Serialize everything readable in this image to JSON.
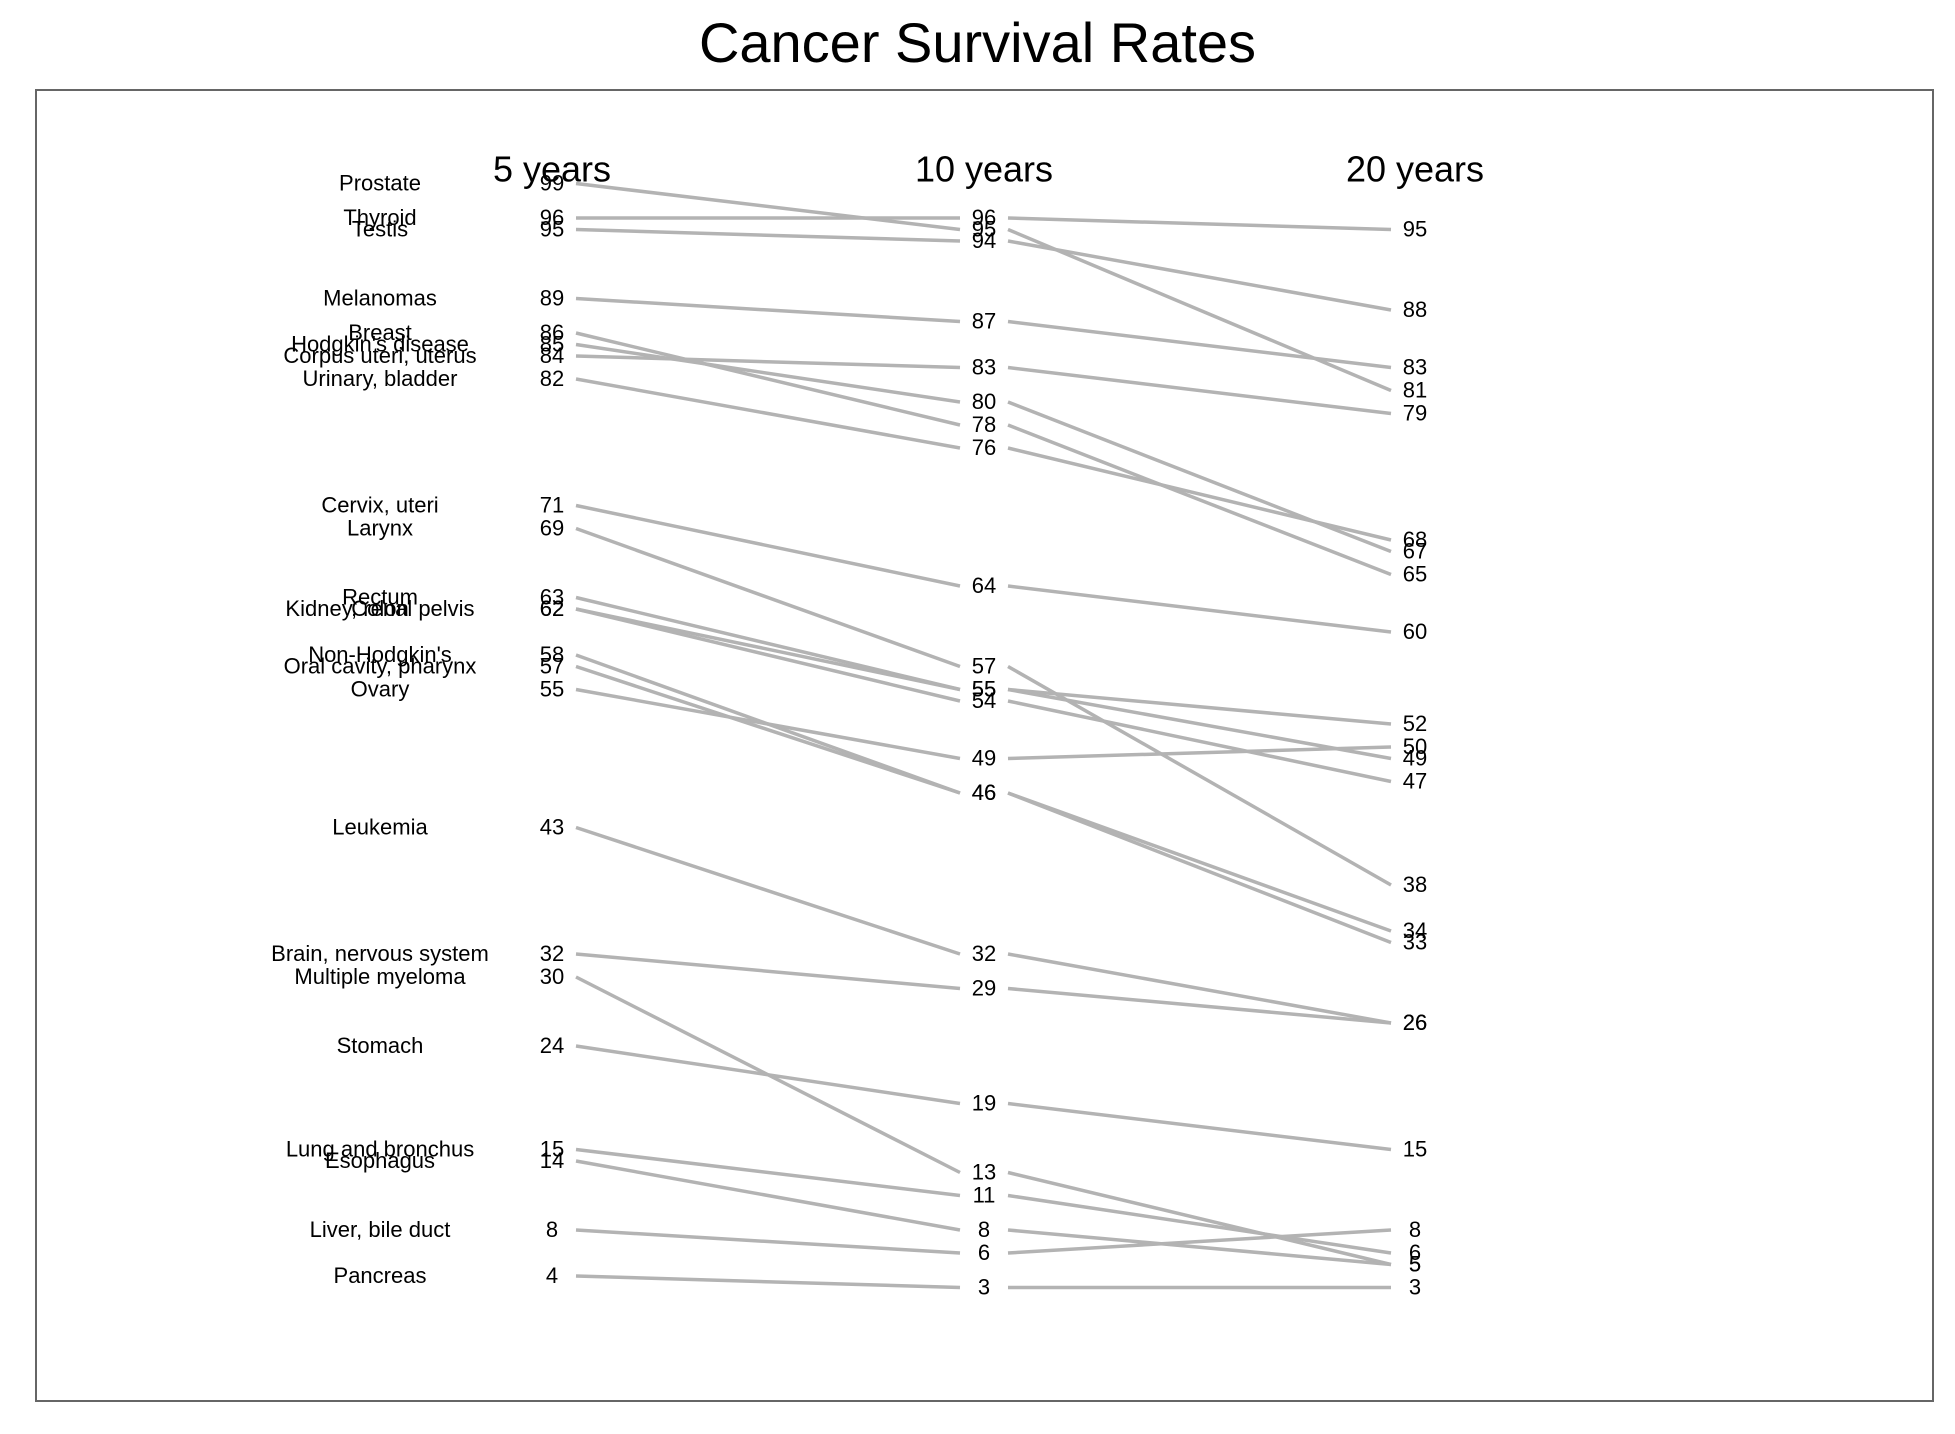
{
  "chart_data": {
    "type": "line",
    "title": "Cancer Survival Rates",
    "columns": [
      "5 years",
      "10 years",
      "20 years"
    ],
    "line_color": "#b3b3b3",
    "border_color": "#666666",
    "rows": [
      {
        "name": "Prostate",
        "values": [
          99,
          95,
          81
        ]
      },
      {
        "name": "Thyroid",
        "values": [
          96,
          96,
          95
        ]
      },
      {
        "name": "Testis",
        "values": [
          95,
          94,
          88
        ]
      },
      {
        "name": "Melanomas",
        "values": [
          89,
          87,
          83
        ]
      },
      {
        "name": "Breast",
        "values": [
          86,
          78,
          65
        ]
      },
      {
        "name": "Hodgkin's disease",
        "values": [
          85,
          80,
          67
        ]
      },
      {
        "name": "Corpus uteri, uterus",
        "values": [
          84,
          83,
          79
        ]
      },
      {
        "name": "Urinary, bladder",
        "values": [
          82,
          76,
          68
        ]
      },
      {
        "name": "Cervix, uteri",
        "values": [
          71,
          64,
          60
        ]
      },
      {
        "name": "Larynx",
        "values": [
          69,
          57,
          38
        ]
      },
      {
        "name": "Rectum",
        "values": [
          63,
          55,
          49
        ]
      },
      {
        "name": "Kidney, renal pelvis",
        "values": [
          62,
          54,
          47
        ]
      },
      {
        "name": "Colon",
        "values": [
          62,
          55,
          52
        ]
      },
      {
        "name": "Non-Hodgkin's",
        "values": [
          58,
          46,
          34
        ]
      },
      {
        "name": "Oral cavity, pharynx",
        "values": [
          57,
          46,
          33
        ]
      },
      {
        "name": "Ovary",
        "values": [
          55,
          49,
          50
        ]
      },
      {
        "name": "Leukemia",
        "values": [
          43,
          32,
          26
        ]
      },
      {
        "name": "Brain, nervous system",
        "values": [
          32,
          29,
          26
        ]
      },
      {
        "name": "Multiple myeloma",
        "values": [
          30,
          13,
          5
        ]
      },
      {
        "name": "Stomach",
        "values": [
          24,
          19,
          15
        ]
      },
      {
        "name": "Lung and bronchus",
        "values": [
          15,
          11,
          6
        ]
      },
      {
        "name": "Esophagus",
        "values": [
          14,
          8,
          5
        ]
      },
      {
        "name": "Liver, bile duct",
        "values": [
          8,
          6,
          8
        ]
      },
      {
        "name": "Pancreas",
        "values": [
          4,
          3,
          3
        ]
      }
    ]
  }
}
